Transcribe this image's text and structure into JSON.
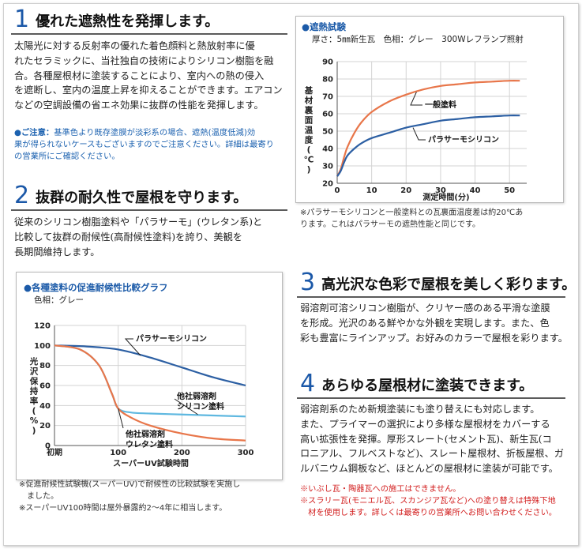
{
  "section1": {
    "number": "1",
    "title": "優れた遮熱性を発揮します。",
    "body": "太陽光に対する反射率の優れた着色顔料と熱放射率に優\nれたセラミックに、当社独自の技術によりシリコン樹脂を融\n合。各種屋根材に塗装することにより、室内への熱の侵入\nを遮断し、室内の温度上昇を抑えることができます。エアコン\nなどの空調設備の省エネ効果に抜群の性能を発揮します。",
    "note_label": "●ご注意：",
    "note_text": "基準色より既存塗膜が淡彩系の場合、遮熱(温度低減)効\n果が得られないケースもございますのでご注意ください。詳細は最寄り\nの営業所にご確認ください。"
  },
  "section2": {
    "number": "2",
    "title": "抜群の耐久性で屋根を守ります。",
    "body": "従来のシリコン樹脂塗料や「パラサーモ」(ウレタン系)と\n比較して抜群の耐候性(高耐候性塗料)を誇り、美観を\n長期間維持します。"
  },
  "section3": {
    "number": "3",
    "title": "高光沢な色彩で屋根を美しく彩ります。",
    "body": "弱溶剤可溶シリコン樹脂が、クリヤー感のある平滑な塗膜\nを形成。光沢のある鮮やかな外観を実現します。また、色\n彩も豊富にラインアップ。お好みのカラーで屋根を彩ります。"
  },
  "section4": {
    "number": "4",
    "title": "あらゆる屋根材に塗装できます。",
    "body": "弱溶剤系のため新規塗装にも塗り替えにも対応します。\nまた、プライマーの選択により多様な屋根材をカバーする\n高い拡張性を発揮。厚形スレート(セメント瓦)、新生瓦(コ\nロニアル、フルベストなど)、スレート屋根材、折板屋根、ガ\nルバニウム鋼板など、ほとんどの屋根材に塗装が可能です。",
    "red_notes": "※いぶし瓦・陶器瓦への施工はできません。\n※スラリー瓦(モニエル瓦、スカンジア瓦など)への塗り替えは特殊下地\n　材を使用します。詳しくは最寄りの営業所へお問い合わせください。"
  },
  "chart_data": [
    {
      "type": "line",
      "title": "●遮熱試験",
      "subtitle": "厚さ：5㎜新生瓦　色相：グレー　300Wレフランプ照射",
      "xlabel": "測定時間(分)",
      "ylabel": "基材裏面温度(℃)",
      "xlim": [
        0,
        55
      ],
      "ylim": [
        20,
        90
      ],
      "xticks": [
        "0",
        "10",
        "20",
        "30",
        "40",
        "50"
      ],
      "yticks": [
        "20",
        "30",
        "40",
        "50",
        "60",
        "70",
        "80",
        "90"
      ],
      "grid": true,
      "series": [
        {
          "name": "一般塗料",
          "color": "#e8764a",
          "x": [
            0,
            1,
            2,
            3,
            5,
            7,
            10,
            15,
            20,
            25,
            30,
            35,
            40,
            45,
            50,
            53
          ],
          "y": [
            24,
            28,
            35,
            41,
            49,
            55,
            61,
            67,
            71,
            74,
            76,
            77,
            78,
            78.5,
            79,
            79
          ]
        },
        {
          "name": "パラサーモシリコン",
          "color": "#2c5fa3",
          "x": [
            0,
            1,
            2,
            3,
            5,
            7,
            10,
            15,
            20,
            25,
            30,
            35,
            40,
            45,
            50,
            53
          ],
          "y": [
            24,
            27,
            32,
            36,
            40,
            43,
            46,
            49,
            52,
            54,
            56,
            57,
            58,
            58.5,
            59,
            59
          ]
        }
      ],
      "footnote": "※パラサーモシリコンと一般塗料との瓦裏面温度差は約20℃あ\nります。これはパラサーモの遮熱性能と同じです。"
    },
    {
      "type": "line",
      "title": "●各種塗料の促進耐候性比較グラフ",
      "subtitle": "色相：グレー",
      "xlabel": "スーパーUV試験時間",
      "ylabel": "光沢保持率(%)",
      "xlim": [
        0,
        300
      ],
      "ylim": [
        0,
        120
      ],
      "xticks": [
        "初期",
        "100",
        "200",
        "300"
      ],
      "yticks": [
        "0",
        "20",
        "40",
        "60",
        "80",
        "100",
        "120"
      ],
      "grid": true,
      "series": [
        {
          "name": "パラサーモシリコン",
          "color": "#2c5fa3",
          "x": [
            0,
            50,
            100,
            150,
            200,
            250,
            300
          ],
          "y": [
            100,
            99,
            96,
            88,
            78,
            68,
            60
          ]
        },
        {
          "name": "他社弱溶剤シリコン塗料",
          "color": "#5fb8e0",
          "x": [
            0,
            40,
            70,
            90,
            100,
            120,
            150,
            200,
            250,
            300
          ],
          "y": [
            100,
            96,
            80,
            52,
            37,
            33,
            32,
            31,
            30,
            29
          ]
        },
        {
          "name": "他社弱溶剤ウレタン塗料",
          "color": "#e8764a",
          "x": [
            0,
            40,
            70,
            90,
            100,
            120,
            150,
            200,
            250,
            300
          ],
          "y": [
            100,
            96,
            80,
            52,
            37,
            28,
            20,
            12,
            7,
            5
          ]
        }
      ],
      "footnote": "※促進耐候性試験機(スーパーUV)で耐候性の比較試験を実施し\n　ました。\n※スーパーUV100時間は屋外暴露約2〜4年に相当します。"
    }
  ]
}
